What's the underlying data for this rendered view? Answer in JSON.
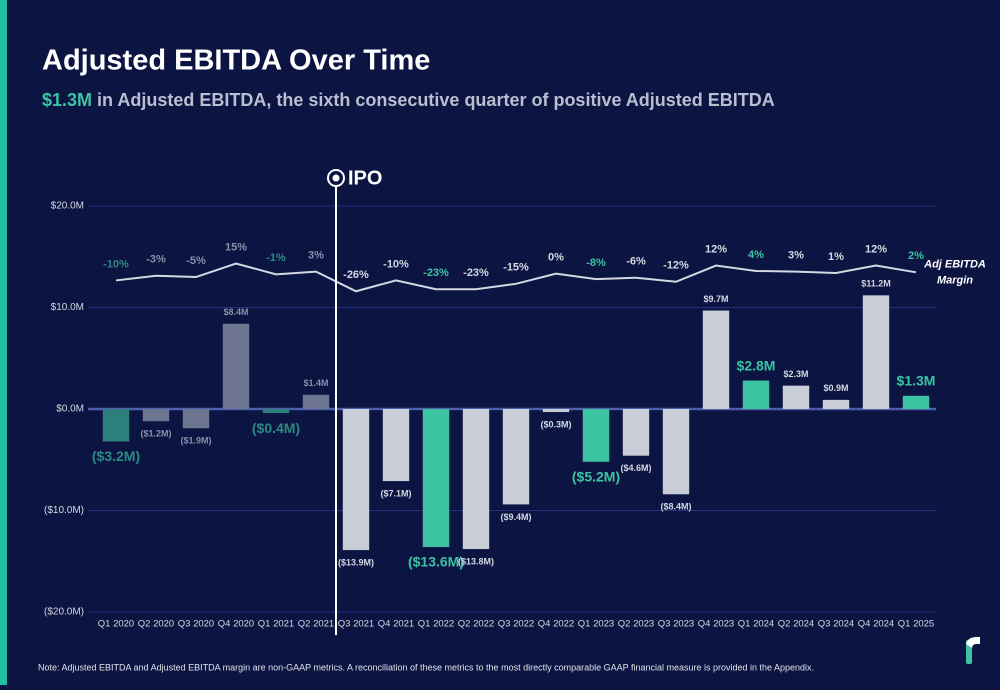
{
  "chart_data": {
    "type": "bar",
    "title": "Adjusted EBITDA Over Time",
    "subtitle_highlight": "$1.3M",
    "subtitle": "in Adjusted EBITDA, the sixth consecutive quarter of positive Adjusted EBITDA",
    "annotation": "IPO",
    "note": "Note: Adjusted EBITDA and Adjusted EBITDA margin are  non-GAAP metrics. A reconciliation of these metrics to the most directly comparable GAAP financial measure is provided in the Appendix.",
    "categories": [
      "Q1 2020",
      "Q2 2020",
      "Q3 2020",
      "Q4 2020",
      "Q1 2021",
      "Q2 2021",
      "Q3 2021",
      "Q4 2021",
      "Q1 2022",
      "Q2 2022",
      "Q3 2022",
      "Q4 2022",
      "Q1 2023",
      "Q2 2023",
      "Q3 2023",
      "Q4 2023",
      "Q1 2024",
      "Q2 2024",
      "Q3 2024",
      "Q4 2024",
      "Q1 2025"
    ],
    "ylim": [
      -20,
      20
    ],
    "yticks": [
      {
        "value": -20,
        "label": "($20.0M)"
      },
      {
        "value": -10,
        "label": "($10.0M)"
      },
      {
        "value": 0,
        "label": "$0.0M"
      },
      {
        "value": 10,
        "label": "$10.0M"
      },
      {
        "value": 20,
        "label": "$20.0M"
      }
    ],
    "y2lim": [
      -500,
      100
    ],
    "grid": true,
    "series": [
      {
        "name": "Adjusted EBITDA",
        "values": [
          -3.2,
          -1.2,
          -1.9,
          8.4,
          -0.4,
          1.4,
          -13.9,
          -7.1,
          -13.6,
          -13.8,
          -9.4,
          -0.3,
          -5.2,
          -4.6,
          -8.4,
          9.7,
          2.8,
          2.3,
          0.9,
          11.2,
          1.3
        ],
        "value_labels": [
          "($3.2M)",
          "($1.2M)",
          "($1.9M)",
          "$8.4M",
          "($0.4M)",
          "$1.4M",
          "($13.9M)",
          "($7.1M)",
          "($13.6M)",
          "($13.8M)",
          "($9.4M)",
          "($0.3M)",
          "($5.2M)",
          "($4.6M)",
          "($8.4M)",
          "$9.7M",
          "$2.8M",
          "$2.3M",
          "$0.9M",
          "$11.2M",
          "$1.3M"
        ],
        "colors": [
          "#2c7f7a",
          "#6e7591",
          "#6e7591",
          "#6e7591",
          "#2c7f7a",
          "#6e7591",
          "#c9cdd8",
          "#c9cdd8",
          "#3cc4a2",
          "#c9cdd8",
          "#c9cdd8",
          "#c9cdd8",
          "#3cc4a2",
          "#c9cdd8",
          "#c9cdd8",
          "#c9cdd8",
          "#3cc4a2",
          "#c9cdd8",
          "#c9cdd8",
          "#c9cdd8",
          "#3cc4a2"
        ],
        "label_colors": [
          "#2c8a82",
          "#8a90a8",
          "#8a90a8",
          "#8a90a8",
          "#2c8a82",
          "#8a90a8",
          "#d4d8e2",
          "#d4d8e2",
          "#3cc4a2",
          "#d4d8e2",
          "#d4d8e2",
          "#d4d8e2",
          "#3cc4a2",
          "#d4d8e2",
          "#d4d8e2",
          "#d4d8e2",
          "#3cc4a2",
          "#d4d8e2",
          "#d4d8e2",
          "#d4d8e2",
          "#3cc4a2"
        ]
      },
      {
        "name": "Adj EBITDA Margin",
        "axis": "y2",
        "color": "#d4d8e2",
        "values": [
          -10,
          -3,
          -5,
          15,
          -1,
          3,
          -26,
          -10,
          -23,
          -23,
          -15,
          0,
          -8,
          -6,
          -12,
          12,
          4,
          3,
          1,
          12,
          2
        ],
        "value_labels": [
          "-10%",
          "-3%",
          "-5%",
          "15%",
          "-1%",
          "3%",
          "-26%",
          "-10%",
          "-23%",
          "-23%",
          "-15%",
          "0%",
          "-8%",
          "-6%",
          "-12%",
          "12%",
          "4%",
          "3%",
          "1%",
          "12%",
          "2%"
        ]
      }
    ]
  }
}
